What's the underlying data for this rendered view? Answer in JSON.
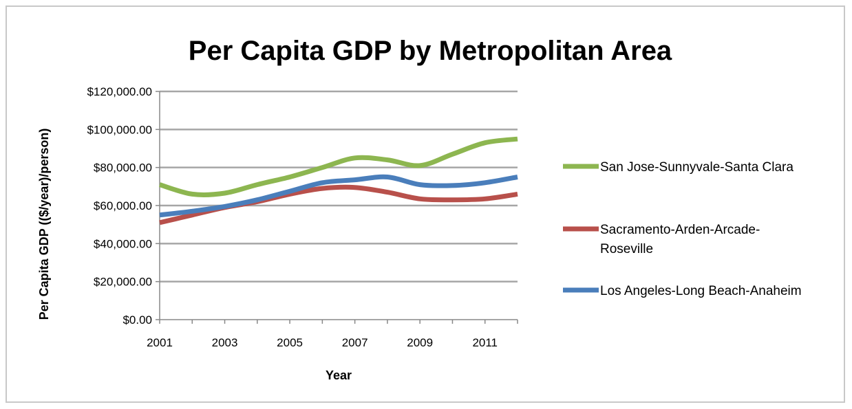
{
  "chart_data": {
    "type": "line",
    "title": "Per Capita GDP by Metropolitan Area",
    "xlabel": "Year",
    "ylabel": "Per Capita GDP  (($/year)/person)",
    "x": [
      2001,
      2002,
      2003,
      2004,
      2005,
      2006,
      2007,
      2008,
      2009,
      2010,
      2011,
      2012
    ],
    "x_tick_labels": [
      "2001",
      "2003",
      "2005",
      "2007",
      "2009",
      "2011"
    ],
    "xlim": [
      2001,
      2012
    ],
    "ylim": [
      0,
      120000
    ],
    "y_tick_labels": [
      "$0.00",
      "$20,000.00",
      "$40,000.00",
      "$60,000.00",
      "$80,000.00",
      "$100,000.00",
      "$120,000.00"
    ],
    "y_ticks": [
      0,
      20000,
      40000,
      60000,
      80000,
      100000,
      120000
    ],
    "grid": true,
    "legend_position": "right",
    "series": [
      {
        "name": "San Jose-Sunnyvale-Santa Clara",
        "legend_lines": [
          "San Jose-Sunnyvale-Santa Clara"
        ],
        "color": "#8db650",
        "values": [
          71000,
          66000,
          66500,
          71000,
          75000,
          80000,
          85000,
          84000,
          81000,
          87000,
          93000,
          95000
        ]
      },
      {
        "name": "Sacramento-Arden-Arcade-Roseville",
        "legend_lines": [
          "Sacramento-Arden-Arcade-",
          "Roseville"
        ],
        "color": "#b8504b",
        "values": [
          51000,
          55000,
          59000,
          62000,
          66000,
          69000,
          69500,
          67000,
          63500,
          63000,
          63500,
          66000
        ]
      },
      {
        "name": "Los Angeles-Long Beach-Anaheim",
        "legend_lines": [
          "Los Angeles-Long Beach-Anaheim"
        ],
        "color": "#4a7ebb",
        "values": [
          55000,
          57000,
          59500,
          63000,
          67500,
          72000,
          73500,
          75000,
          71000,
          70500,
          72000,
          75000
        ]
      }
    ]
  }
}
